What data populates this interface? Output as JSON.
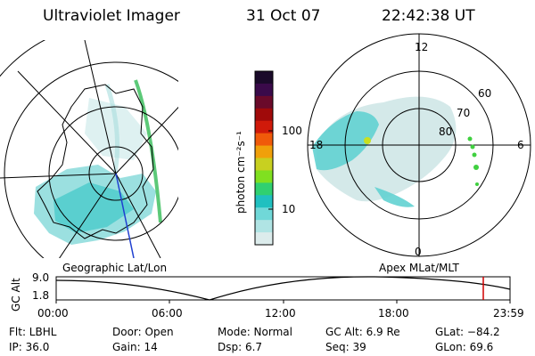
{
  "header": {
    "instrument": "Ultraviolet Imager",
    "date": "31 Oct 07",
    "time": "22:42:38 UT"
  },
  "left_panel": {
    "caption": "Geographic Lat/Lon"
  },
  "right_panel": {
    "caption": "Apex MLat/MLT",
    "hour_labels": {
      "top": "12",
      "left": "18",
      "right": "6",
      "bottom": "0"
    },
    "lat_labels": [
      "80",
      "70",
      "60"
    ]
  },
  "colorbar": {
    "unit_label": "photon cm⁻²s⁻¹",
    "ticks": [
      "100",
      "10"
    ],
    "colors": [
      "#1a0a2a",
      "#3a0a4a",
      "#6a0a2a",
      "#a00a0a",
      "#d01a0a",
      "#f05a0a",
      "#f0a00a",
      "#c8d020",
      "#80e020",
      "#30d070",
      "#20c0c0",
      "#70d8d8",
      "#b0e4e4",
      "#dcecec"
    ]
  },
  "timeline": {
    "ylabel": "GC Alt",
    "yticks": [
      "9.0",
      "1.8"
    ],
    "xticks": [
      "00:00",
      "06:00",
      "12:00",
      "18:00",
      "23:59"
    ],
    "marker_color": "#d00000"
  },
  "info": {
    "flt": "Flt: LBHL",
    "ip": "IP: 36.0",
    "door": "Door: Open",
    "gain": "Gain: 14",
    "mode": "Mode: Normal",
    "dsp": "Dsp:      6.7",
    "gcalt": "GC Alt: 6.9 Re",
    "seq": "Seq: 39",
    "glat": "GLat: −84.2",
    "glon": "GLon:  69.6"
  }
}
